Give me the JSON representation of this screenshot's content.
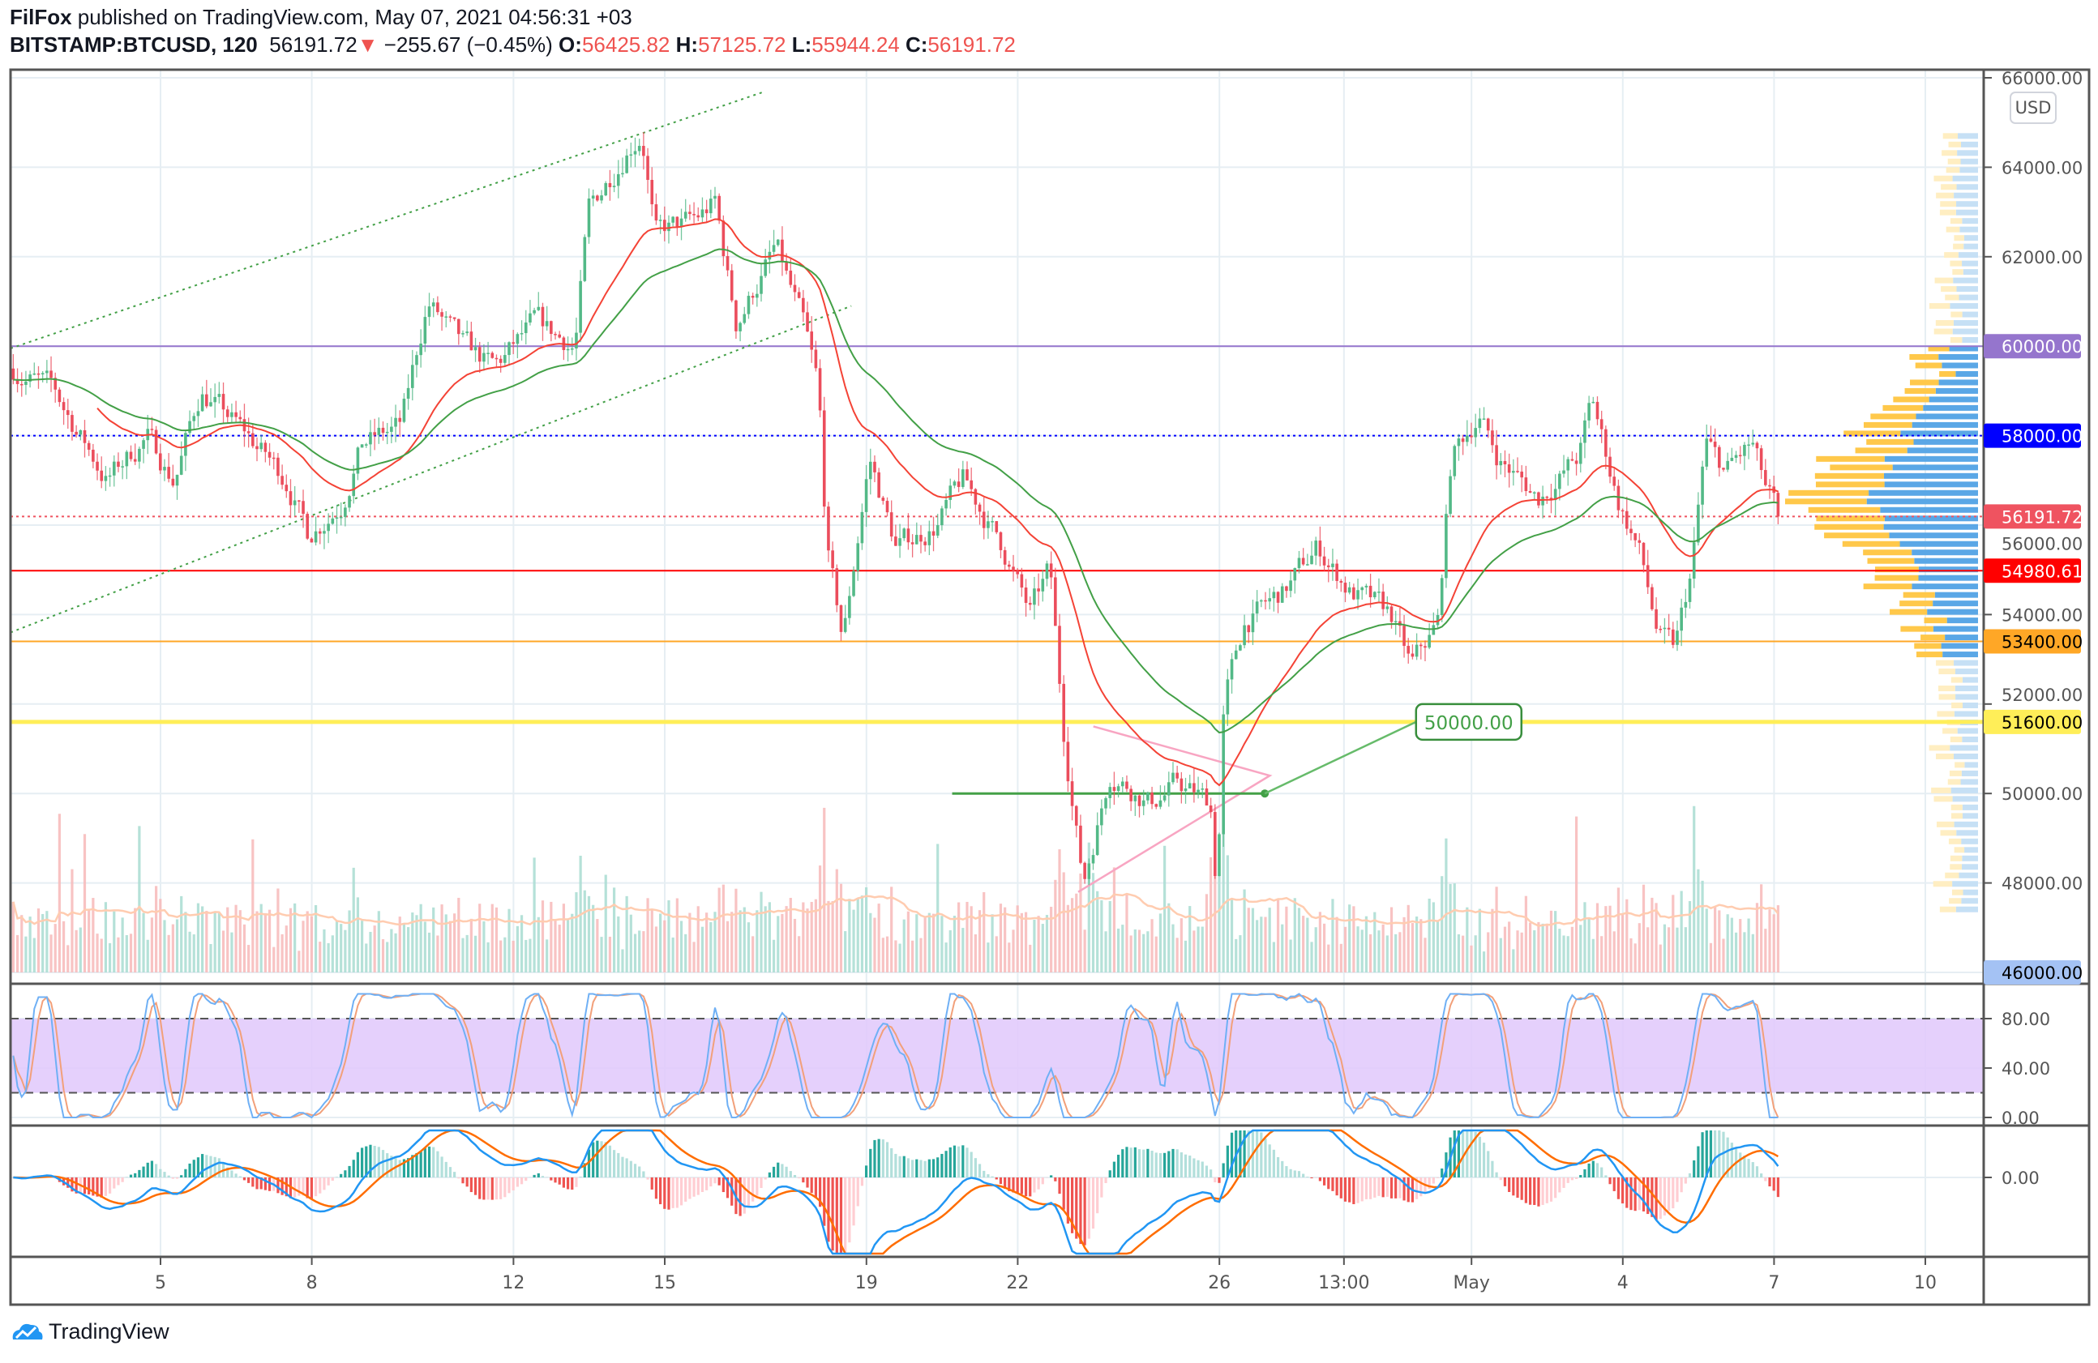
{
  "header": {
    "author": "FilFox",
    "published": " published on TradingView.com, May 07, 2021 04:56:31 +03",
    "symbol": "BITSTAMP:BTCUSD, 120",
    "last": "56191.72",
    "change": "−255.67 (−0.45%)",
    "o_label": "O:",
    "o": "56425.82",
    "h_label": "H:",
    "h": "57125.72",
    "l_label": "L:",
    "l": "55944.24",
    "c_label": "C:",
    "c": "56191.72"
  },
  "currency_button": "USD",
  "colors": {
    "up": "#53b987",
    "down": "#eb4d5c",
    "grid": "#e6eef3",
    "axis": "#555555"
  },
  "price_axis": {
    "ticks": [
      "66000.00",
      "64000.00",
      "62000.00",
      "60000.00",
      "58000.00",
      "56000.00",
      "54000.00",
      "52000.00",
      "50000.00",
      "48000.00",
      "46000.00"
    ],
    "values": [
      66000,
      64000,
      62000,
      60000,
      58000,
      56000,
      54000,
      52000,
      50000,
      48000,
      46000
    ],
    "min": 46000,
    "max": 66000
  },
  "levels": [
    {
      "label": "60000.00",
      "price": 60000,
      "color": "#9575cd",
      "text": "#ffffff",
      "style": "solid"
    },
    {
      "label": "58000.00",
      "price": 58000,
      "color": "#0000ff",
      "text": "#ffffff",
      "style": "dotted"
    },
    {
      "label": "56191.72",
      "price": 56191.72,
      "color": "#ef5360",
      "text": "#ffffff",
      "style": "dotted"
    },
    {
      "label": "54980.61",
      "price": 54980.61,
      "color": "#ff0000",
      "text": "#ffffff",
      "style": "solid"
    },
    {
      "label": "53400.00",
      "price": 53400,
      "color": "#ffa726",
      "text": "#000000",
      "style": "solid"
    },
    {
      "label": "51600.00",
      "price": 51600,
      "color": "#ffee58",
      "text": "#000000",
      "style": "thick"
    },
    {
      "label": "46000.00",
      "price": 46000,
      "color": "#a4c2f4",
      "text": "#000000",
      "style": "solid"
    }
  ],
  "callout": {
    "label": "50000.00",
    "price": 50000
  },
  "time_axis": {
    "ticks": [
      {
        "label": "5",
        "t": 5
      },
      {
        "label": "8",
        "t": 8
      },
      {
        "label": "12",
        "t": 12
      },
      {
        "label": "15",
        "t": 15
      },
      {
        "label": "19",
        "t": 19
      },
      {
        "label": "22",
        "t": 22
      },
      {
        "label": "26",
        "t": 26
      },
      {
        "label": "13:00",
        "t": 28.47
      },
      {
        "label": "May",
        "t": 31
      },
      {
        "label": "4",
        "t": 34
      },
      {
        "label": "7",
        "t": 37
      },
      {
        "label": "10",
        "t": 40
      }
    ]
  },
  "rsi_axis": {
    "ticks": [
      "80.00",
      "40.00",
      "0.00"
    ],
    "values": [
      80,
      40,
      0
    ]
  },
  "macd_axis": {
    "ticks": [
      "0.00"
    ]
  },
  "chart_data": {
    "type": "candlestick",
    "interval_minutes": 120,
    "x_unit": "day (April 2021 = 1..30, May continues 31..)",
    "price_path": [
      [
        2.08,
        59500
      ],
      [
        2.88,
        59000
      ],
      [
        3.94,
        57000
      ],
      [
        4.73,
        58000
      ],
      [
        5.27,
        57000
      ],
      [
        5.8,
        59000
      ],
      [
        6.72,
        58000
      ],
      [
        7.52,
        57000
      ],
      [
        7.92,
        55800
      ],
      [
        8.58,
        56500
      ],
      [
        8.98,
        57800
      ],
      [
        9.77,
        58200
      ],
      [
        10.3,
        61000
      ],
      [
        10.97,
        60000
      ],
      [
        11.63,
        59500
      ],
      [
        12.43,
        60500
      ],
      [
        13.22,
        60000
      ],
      [
        13.49,
        63000
      ],
      [
        14.28,
        64500
      ],
      [
        14.55,
        64800
      ],
      [
        14.81,
        62500
      ],
      [
        15.61,
        62800
      ],
      [
        16.0,
        63200
      ],
      [
        16.41,
        60500
      ],
      [
        17.2,
        62200
      ],
      [
        17.73,
        60500
      ],
      [
        18.05,
        59000
      ],
      [
        18.21,
        55500
      ],
      [
        18.53,
        53400
      ],
      [
        19.06,
        57500
      ],
      [
        19.59,
        55500
      ],
      [
        20.38,
        56000
      ],
      [
        20.92,
        57000
      ],
      [
        21.71,
        55500
      ],
      [
        22.24,
        54000
      ],
      [
        22.64,
        55000
      ],
      [
        22.9,
        51500
      ],
      [
        23.3,
        48000
      ],
      [
        23.83,
        50500
      ],
      [
        24.63,
        49800
      ],
      [
        25.16,
        50200
      ],
      [
        25.82,
        49800
      ],
      [
        25.95,
        47800
      ],
      [
        26.09,
        52000
      ],
      [
        26.49,
        53800
      ],
      [
        27.28,
        54500
      ],
      [
        27.94,
        55500
      ],
      [
        28.61,
        54500
      ],
      [
        29.4,
        54000
      ],
      [
        29.8,
        52800
      ],
      [
        30.33,
        53800
      ],
      [
        30.6,
        57500
      ],
      [
        31.13,
        58500
      ],
      [
        31.53,
        57500
      ],
      [
        32.32,
        56600
      ],
      [
        33.12,
        57500
      ],
      [
        33.39,
        58800
      ],
      [
        33.92,
        56500
      ],
      [
        34.31,
        55500
      ],
      [
        34.71,
        53500
      ],
      [
        35.03,
        53200
      ],
      [
        35.37,
        55000
      ],
      [
        35.64,
        57800
      ],
      [
        36.03,
        57200
      ],
      [
        36.56,
        57800
      ],
      [
        36.83,
        56800
      ],
      [
        37.1,
        56191.72
      ]
    ]
  },
  "logo": {
    "text": "TradingView"
  }
}
